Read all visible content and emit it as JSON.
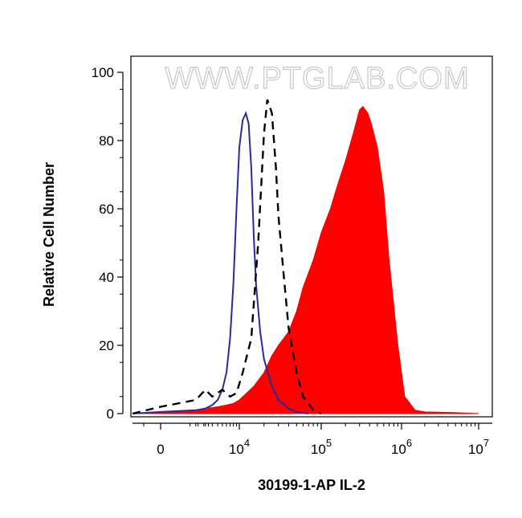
{
  "chart_data": {
    "type": "area",
    "title": "",
    "xlabel": "30199-1-AP IL-2",
    "ylabel": "Relative Cell Number",
    "watermark": "WWW.PTGLAB.COM",
    "x_scale": "biexponential",
    "ylim": [
      0,
      100
    ],
    "y_ticks": [
      {
        "value": 0,
        "label": "0"
      },
      {
        "value": 20,
        "label": "20"
      },
      {
        "value": 40,
        "label": "40"
      },
      {
        "value": 60,
        "label": "60"
      },
      {
        "value": 80,
        "label": "80"
      },
      {
        "value": 100,
        "label": "100"
      }
    ],
    "x_ticks": [
      {
        "value": 0,
        "base": "0",
        "exp": ""
      },
      {
        "value": 10000,
        "base": "10",
        "exp": "4"
      },
      {
        "value": 100000,
        "base": "10",
        "exp": "5"
      },
      {
        "value": 1000000,
        "base": "10",
        "exp": "6"
      },
      {
        "value": 10000000,
        "base": "10",
        "exp": "7"
      }
    ],
    "grid": false,
    "series": [
      {
        "style": "filled",
        "color": "#ff0000",
        "x": [
          -1000,
          0,
          1000,
          2000,
          4000,
          6000,
          8000,
          10000,
          15000,
          20000,
          25000,
          30000,
          40000,
          50000,
          60000,
          80000,
          100000,
          130000,
          160000,
          200000,
          250000,
          300000,
          330000,
          380000,
          420000,
          500000,
          600000,
          700000,
          900000,
          1100000,
          1500000,
          2000000,
          5000000,
          10000000
        ],
        "y": [
          0,
          0.5,
          1,
          1.5,
          2,
          2.5,
          3,
          4,
          8,
          12,
          17,
          20,
          24,
          30,
          37,
          45,
          53,
          60,
          67,
          74,
          82,
          89,
          90,
          88,
          85,
          78,
          65,
          45,
          20,
          5,
          1,
          0.5,
          0.3,
          0
        ]
      },
      {
        "style": "line",
        "color": "#2a2aa0",
        "x": [
          -1000,
          0,
          1000,
          2000,
          3000,
          4000,
          5000,
          6000,
          7000,
          8000,
          9000,
          10000,
          11000,
          12000,
          13000,
          14000,
          15000,
          16000,
          18000,
          20000,
          25000,
          30000,
          40000,
          50000,
          70000
        ],
        "y": [
          0,
          0.5,
          1,
          1.5,
          2.5,
          4,
          7,
          12,
          22,
          38,
          60,
          78,
          86,
          88,
          85,
          72,
          52,
          38,
          24,
          16,
          8,
          4,
          1.5,
          0.5,
          0
        ]
      },
      {
        "style": "dashed",
        "color": "#000000",
        "x": [
          -1000,
          0,
          1000,
          2000,
          3000,
          5000,
          7000,
          9000,
          11000,
          14000,
          17000,
          20000,
          22000,
          25000,
          28000,
          30000,
          35000,
          40000,
          50000,
          60000,
          70000,
          80000,
          100000
        ],
        "y": [
          0,
          2,
          4,
          7,
          5,
          7,
          5,
          6,
          12,
          22,
          50,
          82,
          92,
          88,
          72,
          58,
          40,
          25,
          12,
          5,
          3,
          1,
          0
        ]
      }
    ]
  }
}
